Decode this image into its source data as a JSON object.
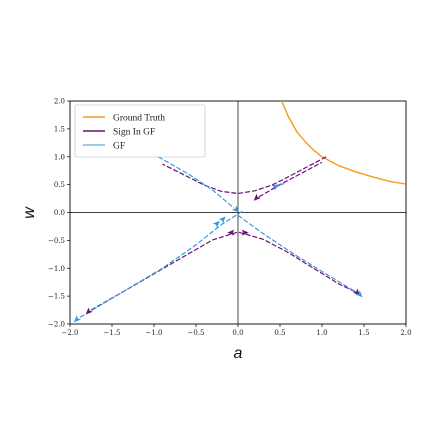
{
  "chart_data": {
    "type": "line",
    "xlabel": "a",
    "ylabel": "w",
    "xlim": [
      -2.0,
      2.0
    ],
    "ylim": [
      -2.0,
      2.0
    ],
    "xticks": [
      -2.0,
      -1.5,
      -1.0,
      -0.5,
      0.0,
      0.5,
      1.0,
      1.5,
      2.0
    ],
    "yticks": [
      -2.0,
      -1.5,
      -1.0,
      -0.5,
      0.0,
      0.5,
      1.0,
      1.5,
      2.0
    ],
    "xtick_labels": [
      "−2.0",
      "−1.5",
      "−1.0",
      "−0.5",
      "0.0",
      "0.5",
      "1.0",
      "1.5",
      "2.0"
    ],
    "ytick_labels": [
      "−2.0",
      "−1.5",
      "−1.0",
      "−0.5",
      "0.0",
      "0.5",
      "1.0",
      "1.5",
      "2.0"
    ],
    "zero_lines": true,
    "legend_position": "top-left",
    "series": [
      {
        "name": "Ground Truth",
        "color": "#f39c1f",
        "style": "solid",
        "segments": [
          [
            [
              0.52,
              2.0
            ],
            [
              0.6,
              1.72
            ],
            [
              0.7,
              1.45
            ],
            [
              0.8,
              1.27
            ],
            [
              0.9,
              1.12
            ],
            [
              1.0,
              1.0
            ],
            [
              1.2,
              0.84
            ],
            [
              1.4,
              0.73
            ],
            [
              1.6,
              0.64
            ],
            [
              1.8,
              0.56
            ],
            [
              2.0,
              0.51
            ]
          ]
        ]
      },
      {
        "name": "Sign In GF",
        "color": "#6a0f7a",
        "style": "dashed",
        "segments": [
          [
            [
              1.05,
              1.0
            ],
            [
              0.8,
              0.8
            ],
            [
              0.55,
              0.6
            ],
            [
              0.4,
              0.49
            ],
            [
              0.2,
              0.39
            ],
            [
              0.0,
              0.34
            ],
            [
              -0.2,
              0.38
            ],
            [
              -0.4,
              0.49
            ],
            [
              -0.7,
              0.72
            ],
            [
              -0.9,
              0.87
            ]
          ],
          [
            [
              0.25,
              0.28
            ],
            [
              0.5,
              0.5
            ],
            [
              0.75,
              0.7
            ],
            [
              1.0,
              0.9
            ]
          ],
          [
            [
              -1.75,
              -1.75
            ],
            [
              -1.4,
              -1.45
            ],
            [
              -1.0,
              -1.1
            ],
            [
              -0.6,
              -0.75
            ],
            [
              -0.3,
              -0.49
            ],
            [
              0.0,
              -0.35
            ],
            [
              0.3,
              -0.48
            ],
            [
              0.6,
              -0.72
            ],
            [
              0.9,
              -1.0
            ],
            [
              1.2,
              -1.28
            ],
            [
              1.42,
              -1.44
            ]
          ]
        ]
      },
      {
        "name": "GF",
        "color": "#3a9ad9",
        "style": "dashed",
        "segments": [
          [
            [
              -0.95,
              1.0
            ],
            [
              -0.6,
              0.7
            ],
            [
              -0.3,
              0.4
            ],
            [
              -0.05,
              0.08
            ]
          ],
          [
            [
              -1.88,
              -1.88
            ],
            [
              -1.4,
              -1.45
            ],
            [
              -0.9,
              -1.0
            ],
            [
              -0.5,
              -0.58
            ],
            [
              -0.2,
              -0.22
            ],
            [
              0.05,
              0.02
            ]
          ],
          [
            [
              0.0,
              -0.05
            ],
            [
              0.3,
              -0.38
            ],
            [
              0.7,
              -0.78
            ],
            [
              1.1,
              -1.15
            ],
            [
              1.45,
              -1.47
            ]
          ],
          [
            [
              0.42,
              0.45
            ],
            [
              0.55,
              0.52
            ]
          ]
        ]
      }
    ],
    "markers": [
      {
        "series": "Sign In GF",
        "x": 0.22,
        "y": 0.26,
        "dir": -135
      },
      {
        "series": "Sign In GF",
        "x": -0.08,
        "y": -0.36,
        "dir": 180
      },
      {
        "series": "Sign In GF",
        "x": 0.08,
        "y": -0.36,
        "dir": 0
      },
      {
        "series": "Sign In GF",
        "x": -1.78,
        "y": -1.78,
        "dir": -135
      },
      {
        "series": "Sign In GF",
        "x": 1.42,
        "y": -1.44,
        "dir": -45
      },
      {
        "series": "GF",
        "x": -0.02,
        "y": 0.05,
        "dir": -45
      },
      {
        "series": "GF",
        "x": -0.18,
        "y": -0.12,
        "dir": 45
      },
      {
        "series": "GF",
        "x": -0.25,
        "y": -0.2,
        "dir": 45
      },
      {
        "series": "GF",
        "x": -1.92,
        "y": -1.92,
        "dir": -135
      },
      {
        "series": "GF",
        "x": 1.45,
        "y": -1.47,
        "dir": -45
      },
      {
        "series": "GF",
        "x": 0.45,
        "y": 0.47,
        "dir": 30
      }
    ]
  }
}
